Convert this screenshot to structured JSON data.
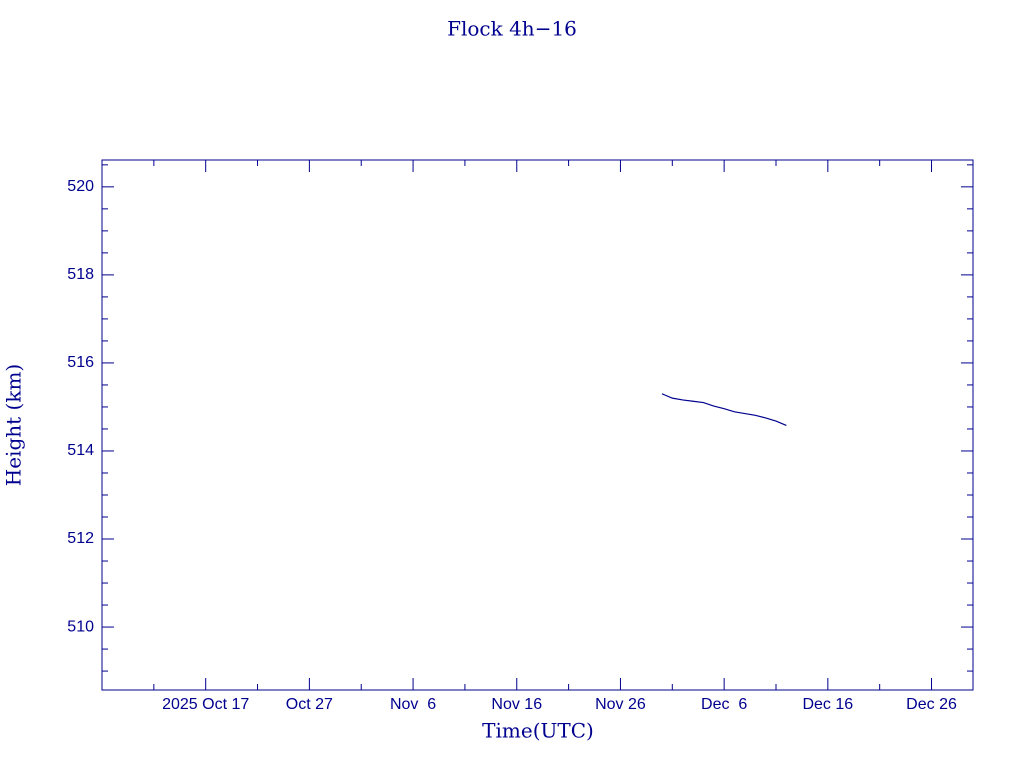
{
  "chart_data": {
    "type": "line",
    "title": "Flock 4h−16",
    "x_label": "Time(UTC)",
    "y_label": "Height (km)",
    "color": "#00008f",
    "xlim": [
      "2025-10-07",
      "2025-12-30"
    ],
    "xticks": [
      {
        "value": "2025-10-17",
        "label": "2025 Oct 17"
      },
      {
        "value": "2025-10-27",
        "label": "Oct 27"
      },
      {
        "value": "2025-11-06",
        "label": "Nov  6"
      },
      {
        "value": "2025-11-16",
        "label": "Nov 16"
      },
      {
        "value": "2025-11-26",
        "label": "Nov 26"
      },
      {
        "value": "2025-12-06",
        "label": "Dec  6"
      },
      {
        "value": "2025-12-16",
        "label": "Dec 16"
      },
      {
        "value": "2025-12-26",
        "label": "Dec 26"
      }
    ],
    "xminor": [
      "2025-10-12",
      "2025-10-22",
      "2025-11-01",
      "2025-11-11",
      "2025-11-21",
      "2025-12-01",
      "2025-12-11",
      "2025-12-21"
    ],
    "ylim": [
      508.57,
      520.61
    ],
    "yticks": [
      510,
      512,
      514,
      516,
      518,
      520
    ],
    "yminor": [
      509,
      509.5,
      510.5,
      511,
      511.5,
      512.5,
      513,
      513.5,
      514.5,
      515,
      515.5,
      516.5,
      517,
      517.5,
      518.5,
      519,
      519.5,
      520.5
    ],
    "x": [
      "2025-11-30",
      "2025-12-01",
      "2025-12-02",
      "2025-12-03",
      "2025-12-04",
      "2025-12-05",
      "2025-12-06",
      "2025-12-07",
      "2025-12-08",
      "2025-12-09",
      "2025-12-10",
      "2025-12-11",
      "2025-12-12"
    ],
    "values": [
      515.3,
      515.2,
      515.16,
      515.13,
      515.1,
      515.02,
      514.96,
      514.89,
      514.85,
      514.81,
      514.75,
      514.68,
      514.58
    ]
  }
}
